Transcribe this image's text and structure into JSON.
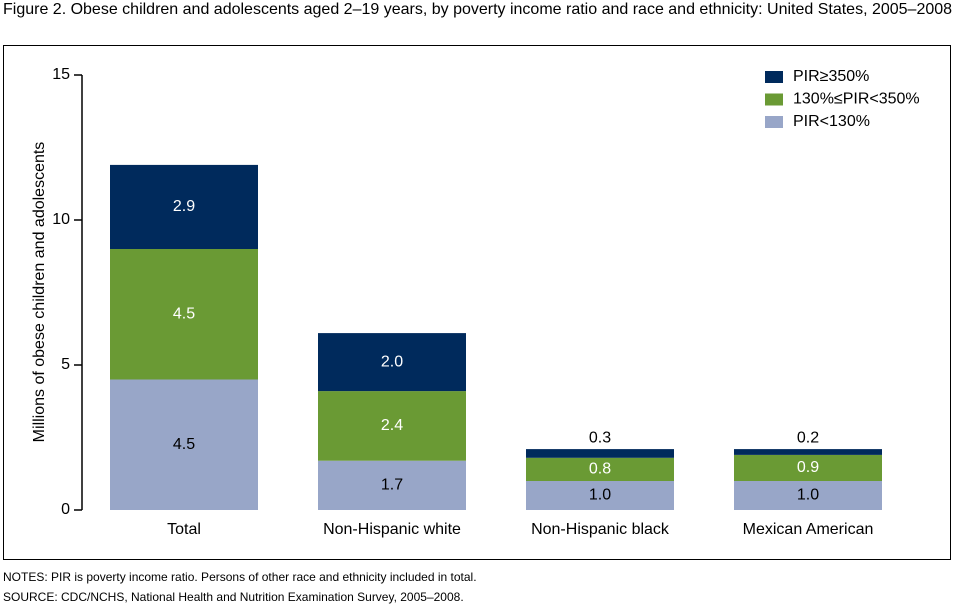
{
  "chart_data": {
    "type": "stacked_bar",
    "title": "Figure 2. Obese children and adolescents aged 2–19 years, by poverty income ratio and race and ethnicity: United States, 2005–2008",
    "y_label": "Millions of obese children and adolescents",
    "categories": [
      "Total",
      "Non-Hispanic white",
      "Non-Hispanic black",
      "Mexican American"
    ],
    "series": [
      {
        "name": "PIR<130%",
        "color": "#98a6c8",
        "values": [
          4.5,
          1.7,
          1.0,
          1.0
        ],
        "value_labels": [
          "4.5",
          "1.7",
          "1.0",
          "1.0"
        ]
      },
      {
        "name": "130%≤PIR<350%",
        "color": "#6a9a34",
        "values": [
          4.5,
          2.4,
          0.8,
          0.9
        ],
        "value_labels": [
          "4.5",
          "2.4",
          "0.8",
          "0.9"
        ]
      },
      {
        "name": "PIR≥350%",
        "color": "#002a5c",
        "values": [
          2.9,
          2.0,
          0.3,
          0.2
        ],
        "value_labels": [
          "2.9",
          "2.0",
          "0.3",
          "0.2"
        ]
      }
    ],
    "ylim": [
      0,
      15
    ],
    "yticks": [
      0,
      5,
      10,
      15
    ],
    "legend": "top-right",
    "notes": [
      "NOTES: PIR is poverty income ratio. Persons of other race and ethnicity included in total.",
      "SOURCE: CDC/NCHS, National Health and Nutrition Examination Survey, 2005–2008."
    ]
  }
}
